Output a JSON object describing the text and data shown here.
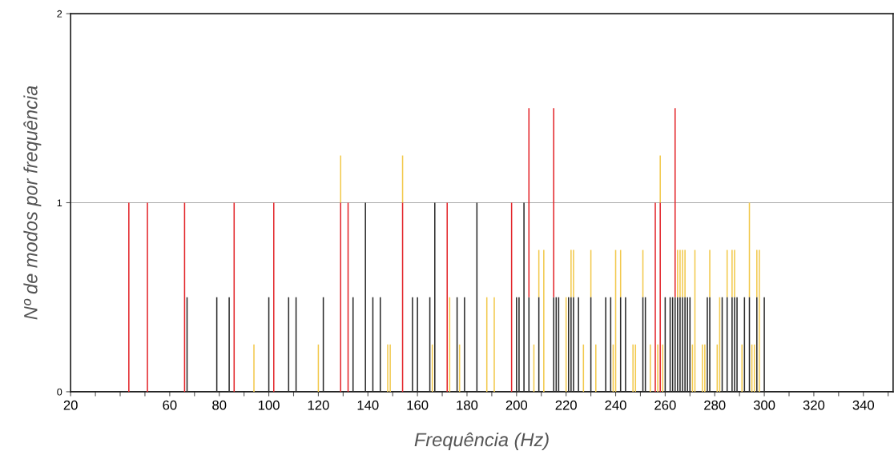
{
  "chart_data": {
    "type": "bar",
    "xlabel": "Frequência (Hz)",
    "ylabel": "Nº de modos por frequência",
    "xlim": [
      20,
      352
    ],
    "ylim": [
      0,
      2
    ],
    "yticks": [
      0,
      1,
      2
    ],
    "xticks": [
      20,
      {
        "value": 30,
        "label": null
      },
      {
        "value": 40,
        "label": null
      },
      {
        "value": 50,
        "label": null
      },
      60,
      {
        "value": 70,
        "label": null
      },
      80,
      {
        "value": 90,
        "label": null
      },
      100,
      {
        "value": 110,
        "label": null
      },
      120,
      {
        "value": 130,
        "label": null
      },
      140,
      {
        "value": 150,
        "label": null
      },
      160,
      {
        "value": 170,
        "label": null
      },
      180,
      {
        "value": 190,
        "label": null
      },
      200,
      {
        "value": 210,
        "label": null
      },
      220,
      {
        "value": 230,
        "label": null
      },
      240,
      {
        "value": 250,
        "label": null
      },
      260,
      {
        "value": 270,
        "label": null
      },
      280,
      {
        "value": 290,
        "label": null
      },
      300,
      {
        "value": 310,
        "label": null
      },
      320,
      {
        "value": 330,
        "label": null
      },
      340,
      {
        "value": 350,
        "label": null
      }
    ],
    "grid": "y",
    "series": [
      {
        "color": "#f2c94c",
        "x": [
          94,
          120,
          129,
          148,
          149,
          154,
          166,
          173,
          177,
          188,
          191,
          207,
          209,
          211,
          220,
          222,
          223,
          227,
          230,
          232,
          239,
          240,
          242,
          247,
          248,
          251,
          254,
          257,
          258,
          259,
          265,
          266,
          267,
          268,
          271,
          272,
          275,
          276,
          278,
          281,
          282,
          285,
          287,
          288,
          291,
          294,
          295,
          296,
          297,
          298
        ],
        "values": [
          0.25,
          0.25,
          0.25,
          0.25,
          0.25,
          0.25,
          0.25,
          0.5,
          0.25,
          0.5,
          0.5,
          0.25,
          0.25,
          0.75,
          0.5,
          0.25,
          0.25,
          0.25,
          0.25,
          0.25,
          0.25,
          0.75,
          0.25,
          0.25,
          0.25,
          0.25,
          0.25,
          0.25,
          0.25,
          0.25,
          0.25,
          0.25,
          0.25,
          0.25,
          0.25,
          0.75,
          0.25,
          0.25,
          0.25,
          0.25,
          0.5,
          0.25,
          0.25,
          0.25,
          0.25,
          0.5,
          0.25,
          0.25,
          0.25,
          0.75
        ],
        "base": [
          0,
          0,
          1,
          0,
          0,
          1,
          0,
          0,
          0,
          0,
          0,
          0,
          0.5,
          0,
          0,
          0.5,
          0.5,
          0,
          0.5,
          0,
          0,
          0,
          0.5,
          0,
          0,
          0.5,
          0,
          0,
          1,
          0,
          0.5,
          0.5,
          0.5,
          0.5,
          0,
          0,
          0,
          0,
          0.5,
          0,
          0,
          0.5,
          0.5,
          0.5,
          0,
          0.5,
          0,
          0,
          0.5,
          0
        ]
      },
      {
        "color": "#2b2b2b",
        "x": [
          67,
          79,
          84,
          100,
          108,
          111,
          122,
          134,
          139,
          142,
          145,
          158,
          160,
          165,
          167,
          176,
          179,
          184,
          200,
          201,
          203,
          205,
          209,
          215,
          216,
          217,
          221,
          222,
          223,
          225,
          230,
          236,
          238,
          242,
          244,
          251,
          252,
          260,
          262,
          263,
          264,
          265,
          266,
          267,
          268,
          269,
          270,
          277,
          278,
          283,
          285,
          287,
          288,
          289,
          292,
          294,
          297,
          300
        ],
        "values": [
          0.5,
          0.5,
          0.5,
          0.5,
          0.5,
          0.5,
          0.5,
          0.5,
          1,
          0.5,
          0.5,
          0.5,
          0.5,
          0.5,
          1,
          0.5,
          0.5,
          1,
          0.5,
          0.5,
          1,
          0.5,
          0.5,
          0.5,
          0.5,
          0.5,
          0.5,
          0.5,
          0.5,
          0.5,
          0.5,
          0.5,
          0.5,
          0.5,
          0.5,
          0.5,
          0.5,
          0.5,
          0.5,
          0.5,
          0.5,
          0.5,
          0.5,
          0.5,
          0.5,
          0.5,
          0.5,
          0.5,
          0.5,
          0.5,
          0.5,
          0.5,
          0.5,
          0.5,
          0.5,
          0.5,
          0.5,
          0.5
        ]
      },
      {
        "color": "#e3262b",
        "x": [
          43.5,
          51,
          66,
          86,
          102,
          129,
          132,
          154,
          172,
          198,
          205,
          215,
          256,
          258,
          264
        ],
        "values": [
          1,
          1,
          1,
          1,
          1,
          1,
          1,
          1,
          1,
          1,
          1,
          1,
          1,
          1,
          1
        ],
        "base": [
          0,
          0,
          0,
          0,
          0,
          0,
          0,
          0,
          0,
          0,
          0.5,
          0.5,
          0,
          0,
          0.5
        ]
      }
    ]
  }
}
